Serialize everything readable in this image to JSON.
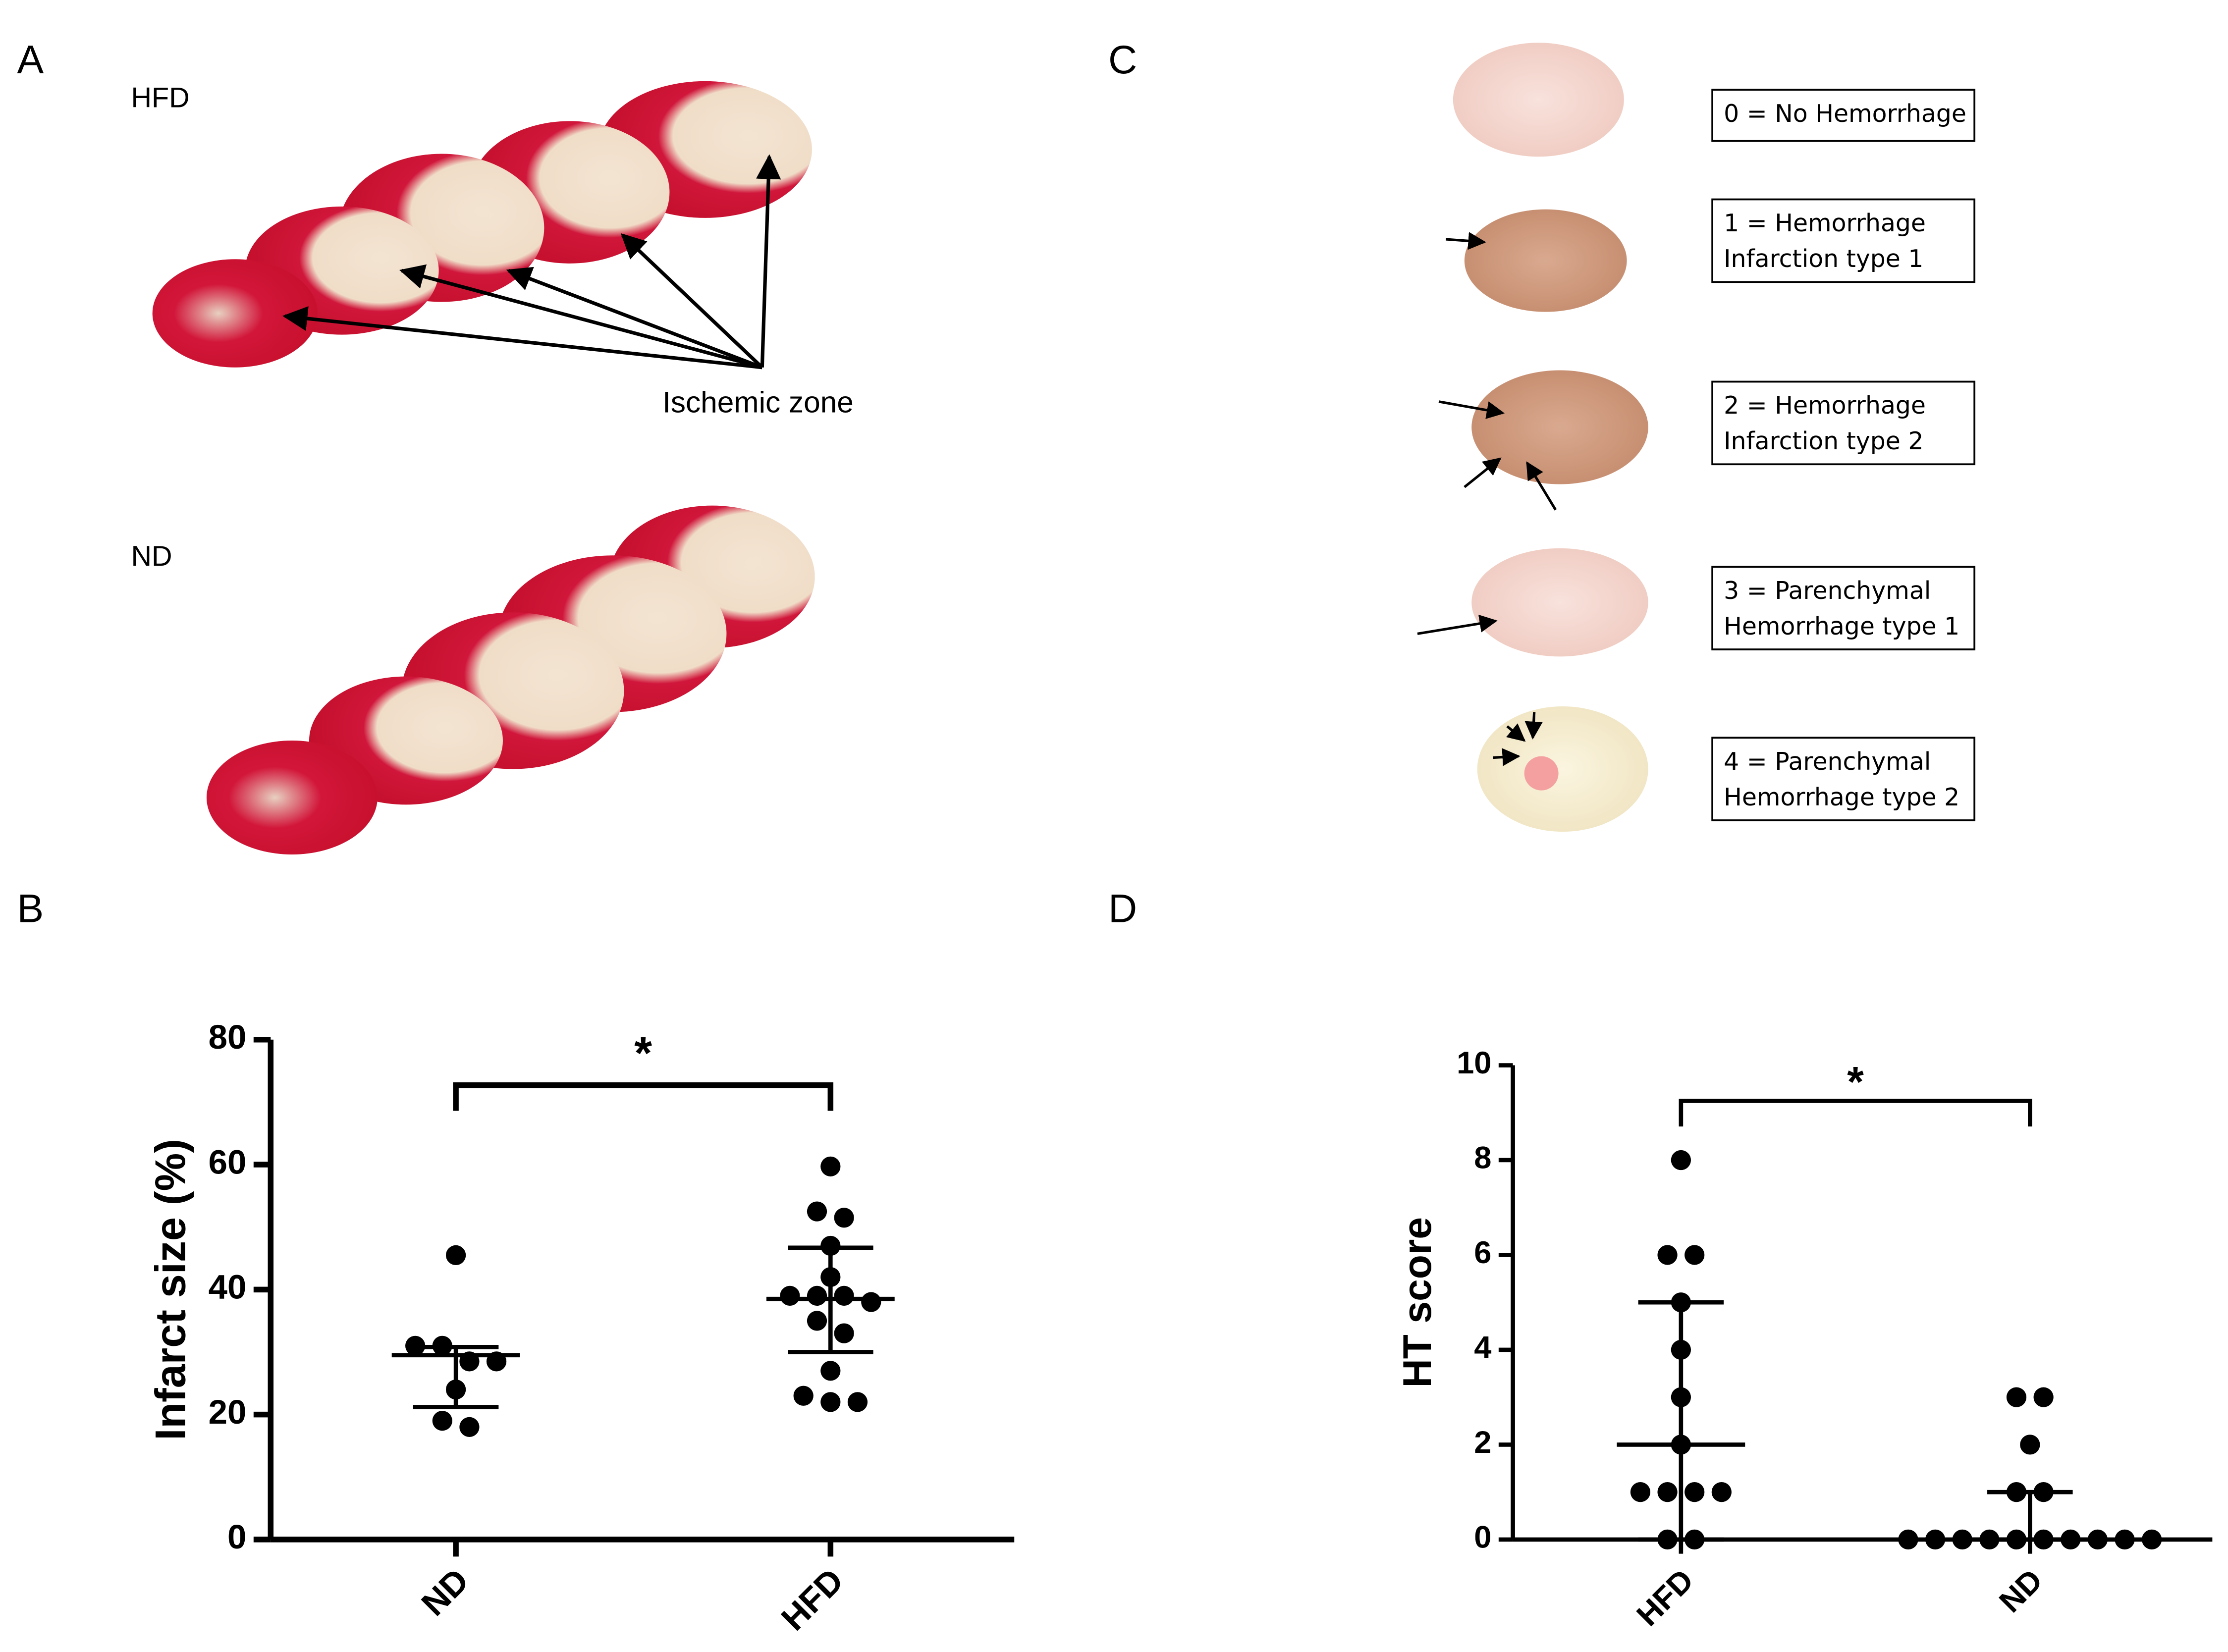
{
  "panel_labels": [
    "A",
    "B",
    "C",
    "D"
  ],
  "panel_a": {
    "row_labels": [
      "HFD",
      "ND"
    ],
    "annotation": "Ischemic zone"
  },
  "panel_c": {
    "scores": [
      {
        "lines": [
          "0 = No Hemorrhage"
        ]
      },
      {
        "lines": [
          "1 = Hemorrhage",
          "Infarction type 1"
        ]
      },
      {
        "lines": [
          "2 = Hemorrhage",
          "Infarction type 2"
        ]
      },
      {
        "lines": [
          "3 = Parenchymal",
          "Hemorrhage type 1"
        ]
      },
      {
        "lines": [
          "4 = Parenchymal",
          "Hemorrhage type 2"
        ]
      }
    ]
  },
  "chart_data": [
    {
      "type": "dot",
      "ylabel": "Infarct size (%)",
      "categories": [
        "ND",
        "HFD"
      ],
      "values": [
        [
          45.5,
          31,
          31,
          28.5,
          28.5,
          24,
          19,
          18
        ],
        [
          59.7,
          52.5,
          51.5,
          47,
          42,
          39,
          39,
          39,
          38,
          35,
          33,
          27,
          23,
          22,
          22
        ]
      ],
      "center": [
        29.5,
        38.5
      ],
      "low": [
        21.2,
        30
      ],
      "high": [
        30.8,
        46.7
      ],
      "ylim": [
        0,
        80
      ],
      "yticks": [
        0,
        20,
        40,
        60,
        80
      ],
      "annotation": "*",
      "color": "#000000"
    },
    {
      "type": "dot",
      "ylabel": "HT score",
      "categories": [
        "HFD",
        "ND"
      ],
      "values": [
        [
          8,
          6,
          6,
          5,
          4,
          3,
          2,
          1,
          1,
          1,
          1,
          0,
          0
        ],
        [
          3,
          3,
          2,
          1,
          1,
          0,
          0,
          0,
          0,
          0,
          0,
          0,
          0,
          0,
          0
        ]
      ],
      "center": [
        2,
        0
      ],
      "low": [
        0,
        0
      ],
      "high": [
        5,
        1
      ],
      "ylim": [
        0,
        10
      ],
      "yticks": [
        0,
        2,
        4,
        6,
        8,
        10
      ],
      "annotation": "*",
      "color": "#000000"
    }
  ]
}
